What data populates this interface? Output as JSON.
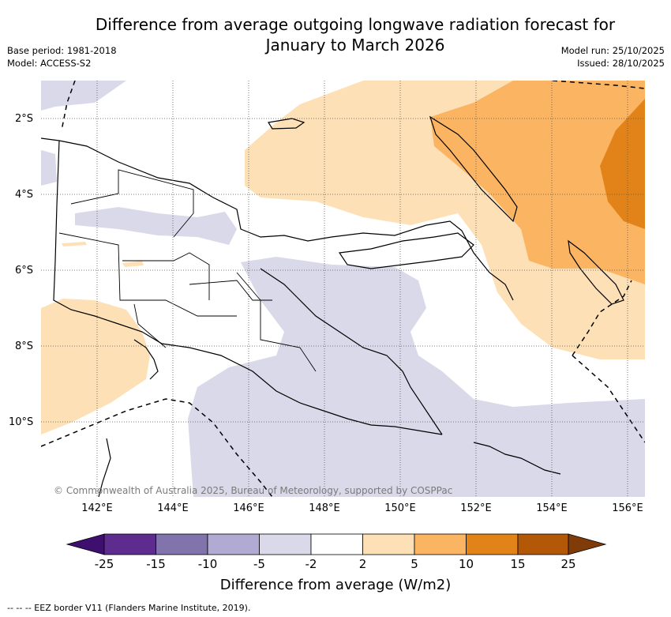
{
  "title_line1": "Difference from average outgoing longwave radiation forecast for",
  "title_line2": "January to March 2026",
  "base_period": "Base period: 1981-2018",
  "model": "Model: ACCESS-S2",
  "model_run": "Model run: 25/10/2025",
  "issued": "Issued: 28/10/2025",
  "lat_labels": [
    "2°S",
    "4°S",
    "6°S",
    "8°S",
    "10°S"
  ],
  "lon_labels": [
    "142°E",
    "144°E",
    "146°E",
    "148°E",
    "150°E",
    "152°E",
    "154°E",
    "156°E"
  ],
  "copyright": "© Commonwealth of Australia 2025, Bureau of Meteorology, supported by COSPPac",
  "colorbar": {
    "ticks": [
      "-25",
      "-15",
      "-10",
      "-5",
      "-2",
      "2",
      "5",
      "10",
      "15",
      "25"
    ],
    "colors": [
      "#3f0f70",
      "#5e2b8f",
      "#8173ab",
      "#b1abd3",
      "#d9d9ea",
      "#ffffff",
      "#fde0b6",
      "#fbb462",
      "#e18318",
      "#b35806",
      "#7f3b08"
    ],
    "title": "Difference from average (W/m2)"
  },
  "eez_note": "--  --  -- EEZ border V11 (Flanders Marine Institute, 2019).",
  "colors": {
    "lavender": "#d9d9ea",
    "light_orange": "#fde0b6",
    "orange": "#fbb462",
    "dark_orange": "#e18318",
    "border": "#000000",
    "grid": "#555555"
  }
}
